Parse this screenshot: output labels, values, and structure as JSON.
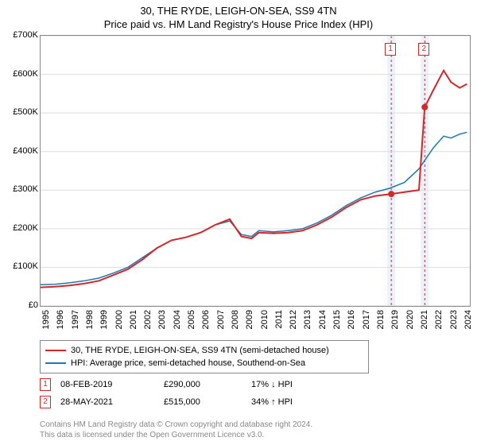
{
  "title": "30, THE RYDE, LEIGH-ON-SEA, SS9 4TN",
  "subtitle": "Price paid vs. HM Land Registry's House Price Index (HPI)",
  "chart": {
    "type": "line",
    "background_color": "#ffffff",
    "border_color": "#888888",
    "grid_color": "#dddddd",
    "tick_color": "#888888",
    "label_fontsize": 11,
    "title_fontsize": 13,
    "ylim": [
      0,
      700000
    ],
    "ytick_step": 100000,
    "yticks": [
      "£0",
      "£100K",
      "£200K",
      "£300K",
      "£400K",
      "£500K",
      "£600K",
      "£700K"
    ],
    "xlim": [
      1995,
      2024.5
    ],
    "xticks": [
      1995,
      1996,
      1997,
      1998,
      1999,
      2000,
      2001,
      2002,
      2003,
      2004,
      2005,
      2006,
      2007,
      2008,
      2009,
      2010,
      2011,
      2012,
      2013,
      2014,
      2015,
      2016,
      2017,
      2018,
      2019,
      2020,
      2021,
      2022,
      2023,
      2024
    ],
    "series": [
      {
        "name": "property",
        "label": "30, THE RYDE, LEIGH-ON-SEA, SS9 4TN (semi-detached house)",
        "color": "#d62728",
        "line_width": 2,
        "data": [
          [
            1995,
            48000
          ],
          [
            1996,
            50000
          ],
          [
            1997,
            53000
          ],
          [
            1998,
            58000
          ],
          [
            1999,
            65000
          ],
          [
            2000,
            80000
          ],
          [
            2001,
            95000
          ],
          [
            2002,
            120000
          ],
          [
            2003,
            150000
          ],
          [
            2004,
            170000
          ],
          [
            2005,
            178000
          ],
          [
            2006,
            190000
          ],
          [
            2007,
            210000
          ],
          [
            2008,
            225000
          ],
          [
            2008.8,
            180000
          ],
          [
            2009.5,
            175000
          ],
          [
            2010,
            190000
          ],
          [
            2011,
            188000
          ],
          [
            2012,
            190000
          ],
          [
            2013,
            195000
          ],
          [
            2014,
            210000
          ],
          [
            2015,
            230000
          ],
          [
            2016,
            255000
          ],
          [
            2017,
            275000
          ],
          [
            2018,
            285000
          ],
          [
            2019.1,
            290000
          ],
          [
            2020,
            295000
          ],
          [
            2021,
            300000
          ],
          [
            2021.4,
            515000
          ],
          [
            2022,
            560000
          ],
          [
            2022.7,
            610000
          ],
          [
            2023.2,
            580000
          ],
          [
            2023.8,
            565000
          ],
          [
            2024.3,
            575000
          ]
        ]
      },
      {
        "name": "hpi",
        "label": "HPI: Average price, semi-detached house, Southend-on-Sea",
        "color": "#1f77b4",
        "line_width": 1.5,
        "data": [
          [
            1995,
            55000
          ],
          [
            1996,
            56000
          ],
          [
            1997,
            60000
          ],
          [
            1998,
            65000
          ],
          [
            1999,
            72000
          ],
          [
            2000,
            85000
          ],
          [
            2001,
            100000
          ],
          [
            2002,
            125000
          ],
          [
            2003,
            150000
          ],
          [
            2004,
            170000
          ],
          [
            2005,
            178000
          ],
          [
            2006,
            190000
          ],
          [
            2007,
            210000
          ],
          [
            2008,
            220000
          ],
          [
            2008.8,
            185000
          ],
          [
            2009.5,
            180000
          ],
          [
            2010,
            195000
          ],
          [
            2011,
            192000
          ],
          [
            2012,
            195000
          ],
          [
            2013,
            200000
          ],
          [
            2014,
            215000
          ],
          [
            2015,
            235000
          ],
          [
            2016,
            260000
          ],
          [
            2017,
            280000
          ],
          [
            2018,
            295000
          ],
          [
            2019,
            305000
          ],
          [
            2020,
            320000
          ],
          [
            2021,
            355000
          ],
          [
            2022,
            410000
          ],
          [
            2022.7,
            440000
          ],
          [
            2023.2,
            435000
          ],
          [
            2023.8,
            445000
          ],
          [
            2024.3,
            450000
          ]
        ]
      }
    ],
    "sale_markers": [
      {
        "n": "1",
        "x": 2019.1,
        "y": 290000,
        "band_color": "#eaf2fb",
        "border_color": "#d62728"
      },
      {
        "n": "2",
        "x": 2021.4,
        "y": 515000,
        "band_color": "#eaf2fb",
        "border_color": "#d62728"
      }
    ]
  },
  "sales": [
    {
      "n": "1",
      "date": "08-FEB-2019",
      "price": "£290,000",
      "diff": "17% ↓ HPI",
      "border_color": "#d62728"
    },
    {
      "n": "2",
      "date": "28-MAY-2021",
      "price": "£515,000",
      "diff": "34% ↑ HPI",
      "border_color": "#d62728"
    }
  ],
  "footer_line1": "Contains HM Land Registry data © Crown copyright and database right 2024.",
  "footer_line2": "This data is licensed under the Open Government Licence v3.0."
}
